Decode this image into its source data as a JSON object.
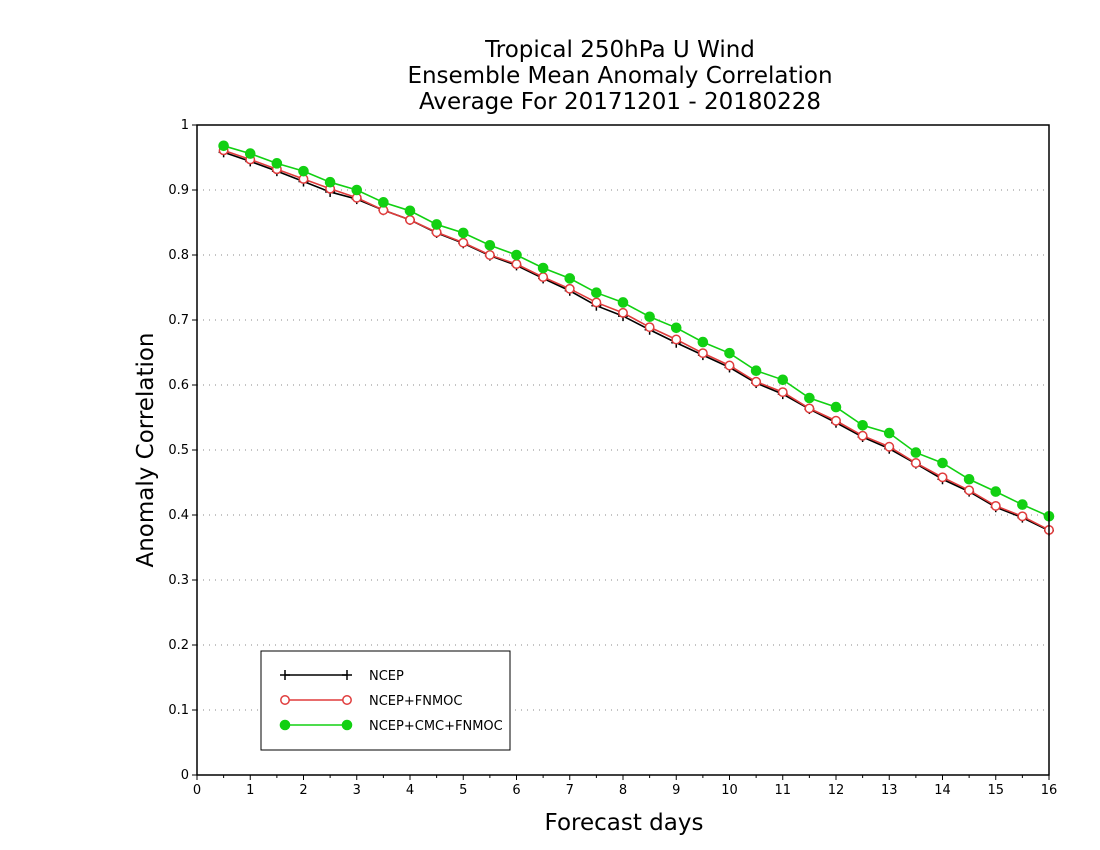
{
  "chart_data": {
    "type": "line",
    "title": [
      "Tropical 250hPa U Wind",
      "Ensemble Mean Anomaly Correlation",
      "Average For 20171201 - 20180228"
    ],
    "xlabel": "Forecast days",
    "ylabel": "Anomaly Correlation",
    "xlim": [
      0,
      16
    ],
    "ylim": [
      0,
      1
    ],
    "xticks": [
      "0",
      "1",
      "2",
      "3",
      "4",
      "5",
      "6",
      "7",
      "8",
      "9",
      "10",
      "11",
      "12",
      "13",
      "14",
      "15",
      "16"
    ],
    "yticks": [
      "0",
      "0.1",
      "0.2",
      "0.3",
      "0.4",
      "0.5",
      "0.6",
      "0.7",
      "0.8",
      "0.9",
      "1"
    ],
    "grid": "horizontal dotted",
    "legend_position": "bottom-left",
    "x": [
      0.5,
      1,
      1.5,
      2,
      2.5,
      3,
      3.5,
      4,
      4.5,
      5,
      5.5,
      6,
      6.5,
      7,
      7.5,
      8,
      8.5,
      9,
      9.5,
      10,
      10.5,
      11,
      11.5,
      12,
      12.5,
      13,
      13.5,
      14,
      14.5,
      15,
      15.5,
      16
    ],
    "series": [
      {
        "name": "NCEP",
        "color": "#000000",
        "marker": "plus",
        "values": [
          0.958,
          0.944,
          0.929,
          0.913,
          0.897,
          0.886,
          0.869,
          0.854,
          0.834,
          0.818,
          0.799,
          0.784,
          0.764,
          0.745,
          0.722,
          0.706,
          0.685,
          0.665,
          0.646,
          0.627,
          0.603,
          0.586,
          0.563,
          0.542,
          0.52,
          0.502,
          0.479,
          0.455,
          0.436,
          0.412,
          0.396,
          0.376
        ]
      },
      {
        "name": "NCEP+FNMOC",
        "color": "#e03c3c",
        "marker": "open-circle",
        "values": [
          0.961,
          0.947,
          0.932,
          0.917,
          0.902,
          0.888,
          0.869,
          0.854,
          0.835,
          0.819,
          0.8,
          0.786,
          0.766,
          0.748,
          0.727,
          0.711,
          0.689,
          0.67,
          0.649,
          0.63,
          0.605,
          0.589,
          0.564,
          0.545,
          0.522,
          0.505,
          0.48,
          0.458,
          0.438,
          0.414,
          0.398,
          0.377
        ]
      },
      {
        "name": "NCEP+CMC+FNMOC",
        "color": "#12d012",
        "marker": "filled-circle",
        "values": [
          0.968,
          0.956,
          0.941,
          0.929,
          0.912,
          0.9,
          0.881,
          0.868,
          0.847,
          0.834,
          0.815,
          0.8,
          0.78,
          0.764,
          0.742,
          0.727,
          0.705,
          0.688,
          0.666,
          0.649,
          0.622,
          0.608,
          0.58,
          0.566,
          0.538,
          0.526,
          0.496,
          0.48,
          0.455,
          0.436,
          0.416,
          0.398
        ]
      }
    ]
  }
}
